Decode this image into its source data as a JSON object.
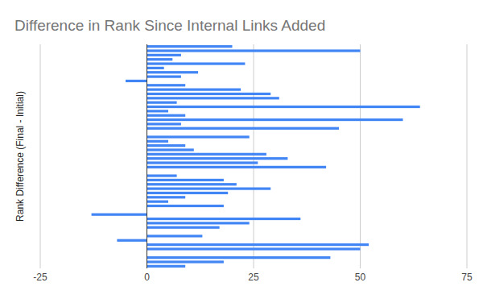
{
  "chart_data": {
    "type": "bar",
    "orientation": "horizontal",
    "title": "Difference in Rank Since Internal Links Added",
    "y_label": "Rank Difference (Final - Initial)",
    "categories": [
      null,
      null,
      null,
      null,
      null,
      null,
      null,
      null,
      null,
      null,
      null,
      null,
      null,
      null,
      null,
      null,
      null,
      null,
      null,
      null,
      null,
      null,
      null,
      null,
      null,
      null,
      null,
      null,
      null,
      null,
      null,
      null,
      null,
      null,
      null,
      null,
      null,
      null,
      null,
      null,
      null,
      null,
      null,
      null,
      null,
      null,
      null,
      null,
      null,
      null,
      null,
      null
    ],
    "values": [
      20,
      50,
      8,
      6,
      23,
      4,
      12,
      8,
      -5,
      9,
      22,
      29,
      31,
      7,
      64,
      5,
      9,
      60,
      8,
      45,
      0,
      24,
      5,
      9,
      11,
      28,
      33,
      26,
      42,
      0,
      7,
      18,
      21,
      29,
      19,
      9,
      5,
      18,
      0,
      -13,
      36,
      24,
      17,
      0,
      13,
      -7,
      52,
      50,
      0,
      43,
      18,
      9
    ],
    "color": "#4285f4",
    "xlim": [
      -25,
      75
    ],
    "xticks": [
      -25,
      0,
      25,
      50,
      75
    ],
    "grid": true,
    "tick_labels": "x"
  }
}
